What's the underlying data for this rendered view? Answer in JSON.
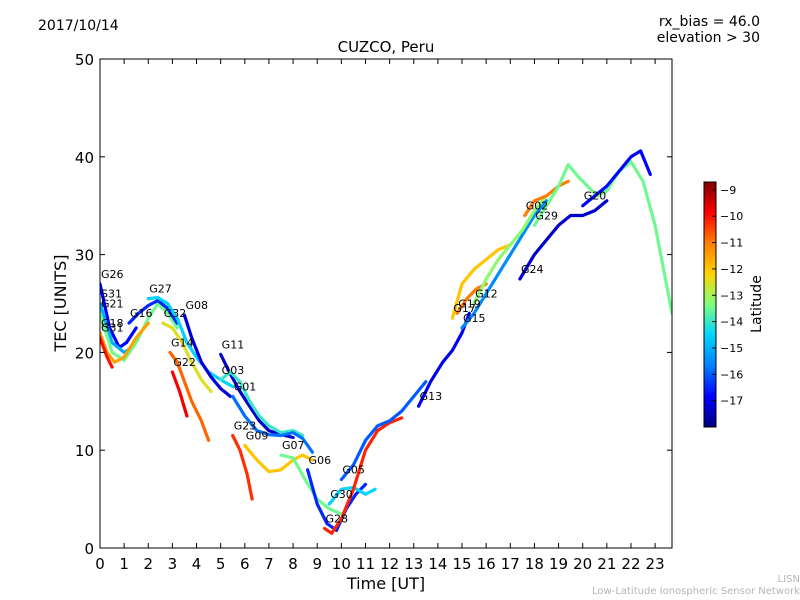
{
  "header": {
    "date": "2017/10/14",
    "meta_line1": "rx_bias = 46.0",
    "meta_line2": "elevation > 30"
  },
  "credit": {
    "line1": "LISN",
    "line2": "Low-Latitude Ionospheric Sensor Network"
  },
  "chart_data": {
    "type": "scatter",
    "title": "CUZCO, Peru",
    "xlabel": "Time [UT]",
    "ylabel": "TEC [UNITS]",
    "xlim": [
      0,
      23.7
    ],
    "ylim": [
      0,
      50
    ],
    "x_ticks": [
      0,
      1,
      2,
      3,
      4,
      5,
      6,
      7,
      8,
      9,
      10,
      11,
      12,
      13,
      14,
      15,
      16,
      17,
      18,
      19,
      20,
      21,
      22,
      23
    ],
    "y_ticks": [
      0,
      10,
      20,
      30,
      40,
      50
    ],
    "grid": false,
    "colorbar": {
      "label": "Latitude",
      "range": [
        -18,
        -8.7
      ],
      "ticks": [
        -9,
        -10,
        -11,
        -12,
        -13,
        -14,
        -15,
        -16,
        -17
      ],
      "colors": [
        "#00007f",
        "#0000ff",
        "#007fff",
        "#00d4ff",
        "#7fff7f",
        "#ffd400",
        "#ff7f00",
        "#ff0000",
        "#7f0000"
      ]
    },
    "series": [
      {
        "name": "G26",
        "lat": -16.8,
        "points": [
          [
            0,
            27
          ],
          [
            0.4,
            22.5
          ],
          [
            0.8,
            20.5
          ],
          [
            1.1,
            21
          ],
          [
            1.5,
            22.5
          ]
        ]
      },
      {
        "name": "S31",
        "lat": -15,
        "points": [
          [
            0,
            25
          ],
          [
            0.5,
            21
          ],
          [
            1,
            20
          ],
          [
            1.3,
            20.5
          ]
        ]
      },
      {
        "name": "G21",
        "lat": -13.5,
        "points": [
          [
            0,
            24
          ],
          [
            0.5,
            20
          ],
          [
            1,
            19.2
          ],
          [
            1.5,
            21
          ],
          [
            2,
            23.5
          ],
          [
            2.4,
            25
          ],
          [
            2.8,
            24
          ],
          [
            3.2,
            22.5
          ]
        ]
      },
      {
        "name": "G18",
        "lat": -11.5,
        "points": [
          [
            0,
            22
          ],
          [
            0.3,
            20
          ],
          [
            0.6,
            19
          ],
          [
            1,
            19.5
          ],
          [
            1.5,
            21.5
          ],
          [
            2,
            23
          ]
        ]
      },
      {
        "name": "G31",
        "lat": -10,
        "points": [
          [
            0,
            21.5
          ],
          [
            0.3,
            19.5
          ],
          [
            0.5,
            18.5
          ]
        ]
      },
      {
        "name": "G16",
        "lat": -16.5,
        "points": [
          [
            1.2,
            23
          ],
          [
            1.6,
            24
          ],
          [
            2,
            24.8
          ],
          [
            2.4,
            25.3
          ],
          [
            2.8,
            24.5
          ],
          [
            3.2,
            23
          ]
        ]
      },
      {
        "name": "G27",
        "lat": -14.5,
        "points": [
          [
            2,
            25.5
          ],
          [
            2.4,
            25.6
          ],
          [
            2.8,
            25
          ],
          [
            3.2,
            23.5
          ],
          [
            3.6,
            21
          ],
          [
            4,
            19.5
          ],
          [
            4.5,
            18
          ],
          [
            5,
            17.2
          ],
          [
            5.5,
            16.5
          ]
        ]
      },
      {
        "name": "G32",
        "lat": -12.5,
        "points": [
          [
            2.6,
            23
          ],
          [
            3,
            22.5
          ],
          [
            3.4,
            21
          ],
          [
            3.8,
            19
          ],
          [
            4.2,
            17.2
          ],
          [
            4.6,
            16
          ]
        ]
      },
      {
        "name": "G08",
        "lat": -17.2,
        "points": [
          [
            3.5,
            23.8
          ],
          [
            3.8,
            21.5
          ],
          [
            4.2,
            19
          ],
          [
            4.6,
            17.5
          ],
          [
            5,
            16.3
          ],
          [
            5.4,
            15.5
          ]
        ]
      },
      {
        "name": "G14",
        "lat": -10.8,
        "points": [
          [
            2.9,
            20
          ],
          [
            3.2,
            19
          ],
          [
            3.5,
            17
          ],
          [
            3.8,
            15
          ],
          [
            4.2,
            13
          ],
          [
            4.5,
            11
          ]
        ]
      },
      {
        "name": "G22",
        "lat": -9.8,
        "points": [
          [
            3,
            18
          ],
          [
            3.3,
            16
          ],
          [
            3.6,
            13.5
          ]
        ]
      },
      {
        "name": "G11",
        "lat": -17.3,
        "points": [
          [
            5,
            19.8
          ],
          [
            5.4,
            17.8
          ],
          [
            5.8,
            16
          ],
          [
            6.2,
            14.5
          ],
          [
            6.6,
            13
          ],
          [
            7,
            12
          ],
          [
            7.5,
            11.6
          ],
          [
            8,
            11.3
          ]
        ]
      },
      {
        "name": "G03",
        "lat": -14,
        "points": [
          [
            5,
            17.2
          ],
          [
            5.4,
            18
          ],
          [
            5.8,
            17
          ],
          [
            6.2,
            15
          ],
          [
            6.6,
            13.5
          ],
          [
            7,
            12.5
          ],
          [
            7.5,
            11.8
          ],
          [
            8,
            12
          ],
          [
            8.4,
            11.5
          ]
        ]
      },
      {
        "name": "G01",
        "lat": -15.8,
        "points": [
          [
            5.5,
            15.5
          ],
          [
            6,
            13.5
          ],
          [
            6.5,
            12
          ],
          [
            7,
            11.6
          ],
          [
            7.5,
            11.5
          ],
          [
            8,
            11.8
          ],
          [
            8.4,
            11.2
          ],
          [
            8.8,
            9.8
          ]
        ]
      },
      {
        "name": "G23",
        "lat": -10.3,
        "points": [
          [
            5.5,
            11.5
          ],
          [
            5.8,
            10
          ],
          [
            6.1,
            7.5
          ],
          [
            6.3,
            5
          ]
        ]
      },
      {
        "name": "G09",
        "lat": -12,
        "points": [
          [
            6,
            10.5
          ],
          [
            6.5,
            9
          ],
          [
            7,
            7.8
          ],
          [
            7.5,
            8
          ],
          [
            8,
            9
          ],
          [
            8.4,
            9.5
          ],
          [
            8.8,
            9
          ]
        ]
      },
      {
        "name": "G07",
        "lat": -13.5,
        "points": [
          [
            7.5,
            9.5
          ],
          [
            8,
            9.2
          ],
          [
            8.5,
            7
          ],
          [
            9,
            5
          ],
          [
            9.5,
            4
          ],
          [
            10,
            3.5
          ]
        ]
      },
      {
        "name": "G06",
        "lat": -16.5,
        "points": [
          [
            8.6,
            8
          ],
          [
            9,
            4.5
          ],
          [
            9.4,
            2.5
          ],
          [
            9.8,
            1.8
          ],
          [
            10.2,
            4
          ],
          [
            10.6,
            5.5
          ],
          [
            11,
            6.5
          ]
        ]
      },
      {
        "name": "G30",
        "lat": -14.5,
        "points": [
          [
            9.5,
            4.5
          ],
          [
            10,
            6
          ],
          [
            10.5,
            6.2
          ],
          [
            11,
            5.5
          ],
          [
            11.4,
            6
          ]
        ]
      },
      {
        "name": "G28",
        "lat": -10.2,
        "points": [
          [
            9.3,
            2
          ],
          [
            9.6,
            1.5
          ],
          [
            10,
            3
          ],
          [
            10.5,
            6
          ],
          [
            11,
            10
          ],
          [
            11.5,
            12
          ],
          [
            12,
            12.8
          ],
          [
            12.5,
            13.3
          ]
        ]
      },
      {
        "name": "G05",
        "lat": -16,
        "points": [
          [
            10,
            7
          ],
          [
            10.5,
            8.5
          ],
          [
            11,
            11
          ],
          [
            11.5,
            12.5
          ],
          [
            12,
            13
          ],
          [
            12.5,
            14
          ],
          [
            13,
            15.5
          ],
          [
            13.5,
            17
          ]
        ]
      },
      {
        "name": "G13",
        "lat": -17,
        "points": [
          [
            13.2,
            14.5
          ],
          [
            13.7,
            17
          ],
          [
            14.2,
            19
          ],
          [
            14.6,
            20.2
          ],
          [
            15,
            22
          ],
          [
            15.3,
            24
          ]
        ]
      },
      {
        "name": "G17",
        "lat": -12,
        "points": [
          [
            14.6,
            23.5
          ],
          [
            15,
            27
          ],
          [
            15.5,
            28.5
          ],
          [
            16,
            29.5
          ],
          [
            16.5,
            30.5
          ],
          [
            17,
            31
          ]
        ]
      },
      {
        "name": "G19",
        "lat": -11,
        "points": [
          [
            14.8,
            24
          ],
          [
            15.2,
            25.5
          ],
          [
            15.6,
            26.5
          ],
          [
            16,
            27
          ]
        ]
      },
      {
        "name": "G15",
        "lat": -15.5,
        "points": [
          [
            15,
            22.5
          ],
          [
            15.5,
            24
          ],
          [
            16,
            26
          ],
          [
            16.5,
            28
          ],
          [
            17,
            30
          ],
          [
            17.5,
            32
          ],
          [
            18,
            34
          ],
          [
            18.5,
            35.5
          ]
        ]
      },
      {
        "name": "G12",
        "lat": -13.2,
        "points": [
          [
            15.5,
            25
          ],
          [
            16,
            27.5
          ],
          [
            16.5,
            29.5
          ],
          [
            17,
            31
          ],
          [
            17.5,
            32.5
          ],
          [
            18,
            34.5
          ],
          [
            18.5,
            36
          ]
        ]
      },
      {
        "name": "G24",
        "lat": -17.3,
        "points": [
          [
            17.4,
            27.5
          ],
          [
            18,
            30
          ],
          [
            18.5,
            31.5
          ],
          [
            19,
            33
          ],
          [
            19.5,
            34
          ],
          [
            20,
            34
          ],
          [
            20.5,
            34.5
          ],
          [
            21,
            35.5
          ]
        ]
      },
      {
        "name": "G02",
        "lat": -11,
        "points": [
          [
            17.6,
            34
          ],
          [
            18,
            35.5
          ],
          [
            18.5,
            36
          ],
          [
            19,
            37
          ],
          [
            19.4,
            37.5
          ]
        ]
      },
      {
        "name": "G29",
        "lat": -13.5,
        "points": [
          [
            18,
            33
          ],
          [
            18.5,
            35
          ],
          [
            19,
            37
          ],
          [
            19.4,
            39.2
          ],
          [
            19.8,
            38
          ],
          [
            20.2,
            37
          ],
          [
            20.6,
            36
          ],
          [
            21,
            36.5
          ],
          [
            21.5,
            38.5
          ],
          [
            22,
            39.5
          ],
          [
            22.5,
            37.5
          ],
          [
            23,
            33
          ],
          [
            23.7,
            24
          ]
        ]
      },
      {
        "name": "G20",
        "lat": -16.8,
        "points": [
          [
            20,
            35
          ],
          [
            20.5,
            36
          ],
          [
            21,
            37
          ],
          [
            21.5,
            38.5
          ],
          [
            22,
            40
          ],
          [
            22.4,
            40.6
          ],
          [
            22.8,
            38.2
          ]
        ]
      }
    ]
  }
}
